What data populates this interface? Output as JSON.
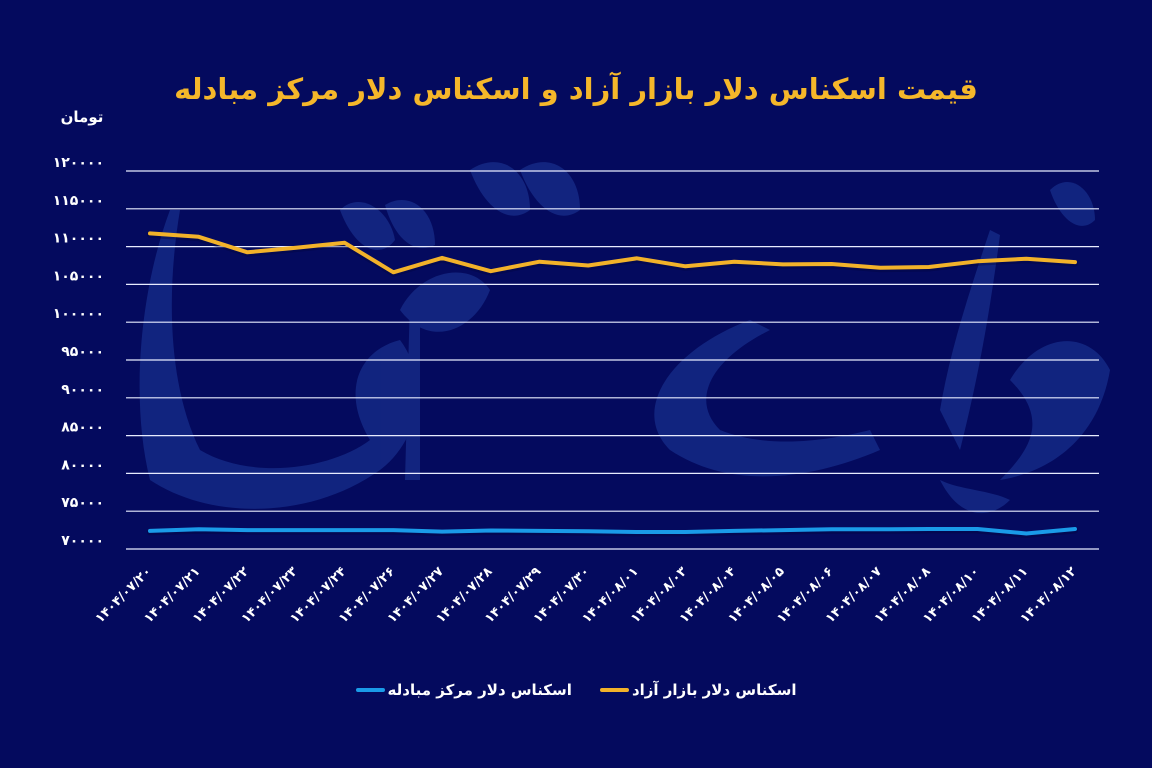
{
  "title": "قیمت اسکناس دلار بازار آزاد و اسکناس دلار مرکز مبادله",
  "unit_label": "تومان",
  "watermark": "دنیای اقتصاد",
  "colors": {
    "background": "#040a5e",
    "title": "#f5b72a",
    "gridline": "#e8ecff",
    "free_market": "#f2b22a",
    "exchange_center": "#1a9be8",
    "watermark": "#1e3b9a"
  },
  "legend": [
    {
      "label": "اسکناس دلار بازار آزاد",
      "color": "#f2b22a"
    },
    {
      "label": "اسکناس دلار مرکز مبادله",
      "color": "#1a9be8"
    }
  ],
  "chart_data": {
    "type": "line",
    "title": "قیمت اسکناس دلار بازار آزاد و اسکناس دلار مرکز مبادله",
    "xlabel": "",
    "ylabel": "تومان",
    "ylim": [
      70000,
      120000
    ],
    "grid": true,
    "legend_position": "bottom",
    "yticks": [
      120000,
      115000,
      110000,
      105000,
      100000,
      95000,
      90000,
      85000,
      80000,
      75000,
      70000
    ],
    "ytick_labels": [
      "۱۲۰۰۰۰",
      "۱۱۵۰۰۰",
      "۱۱۰۰۰۰",
      "۱۰۵۰۰۰",
      "۱۰۰۰۰۰",
      "۹۵۰۰۰",
      "۹۰۰۰۰",
      "۸۵۰۰۰",
      "۸۰۰۰۰",
      "۷۵۰۰۰",
      "۷۰۰۰۰"
    ],
    "categories": [
      "۱۴۰۴/۰۷/۲۰",
      "۱۴۰۴/۰۷/۲۱",
      "۱۴۰۴/۰۷/۲۲",
      "۱۴۰۴/۰۷/۲۳",
      "۱۴۰۴/۰۷/۲۴",
      "۱۴۰۴/۰۷/۲۶",
      "۱۴۰۴/۰۷/۲۷",
      "۱۴۰۴/۰۷/۲۸",
      "۱۴۰۴/۰۷/۲۹",
      "۱۴۰۴/۰۷/۳۰",
      "۱۴۰۴/۰۸/۰۱",
      "۱۴۰۴/۰۸/۰۳",
      "۱۴۰۴/۰۸/۰۴",
      "۱۴۰۴/۰۸/۰۵",
      "۱۴۰۴/۰۸/۰۶",
      "۱۴۰۴/۰۸/۰۷",
      "۱۴۰۴/۰۸/۰۸",
      "۱۴۰۴/۰۸/۱۰",
      "۱۴۰۴/۰۸/۱۱",
      "۱۴۰۴/۰۸/۱۲"
    ],
    "series": [
      {
        "name": "اسکناس دلار بازار آزاد",
        "color": "#f2b22a",
        "values": [
          111750,
          111300,
          109250,
          109850,
          110500,
          106600,
          108500,
          106750,
          108000,
          107500,
          108450,
          107400,
          108000,
          107650,
          107700,
          107200,
          107300,
          108050,
          108400,
          107950
        ]
      },
      {
        "name": "اسکناس دلار مرکز مبادله",
        "color": "#1a9be8",
        "values": [
          72400,
          72600,
          72500,
          72500,
          72500,
          72500,
          72300,
          72450,
          72400,
          72350,
          72250,
          72250,
          72400,
          72500,
          72600,
          72600,
          72650,
          72650,
          72050,
          72650
        ]
      }
    ]
  }
}
